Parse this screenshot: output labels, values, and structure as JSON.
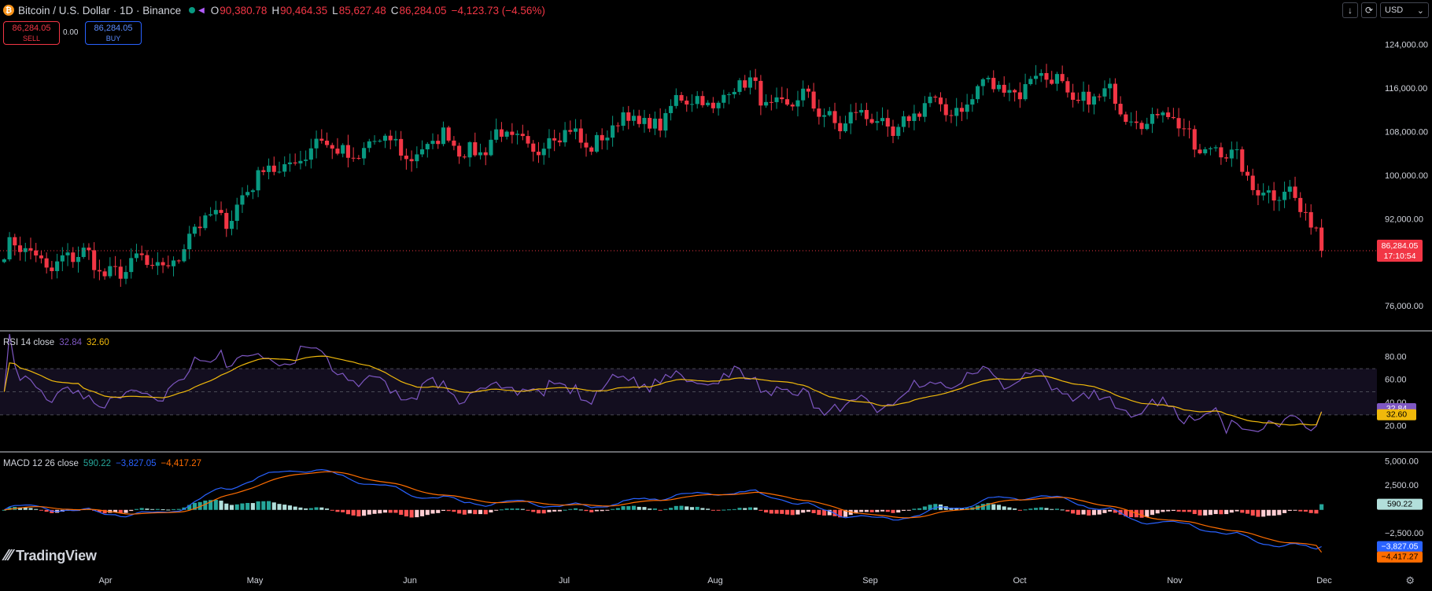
{
  "header": {
    "title": "Bitcoin / U.S. Dollar · 1D · Binance",
    "o_label": "O",
    "o_value": "90,380.78",
    "h_label": "H",
    "h_value": "90,464.35",
    "l_label": "L",
    "l_value": "85,627.48",
    "c_label": "C",
    "c_value": "86,284.05",
    "change": "−4,123.73 (−4.56%)"
  },
  "trade": {
    "sell_price": "86,284.05",
    "sell_label": "SELL",
    "buy_price": "86,284.05",
    "buy_label": "BUY",
    "spread": "0.00"
  },
  "toolbar": {
    "currency": "USD"
  },
  "price_pane": {
    "last_price": "86,284.05",
    "countdown": "17:10:54",
    "ticks": [
      "124,000.00",
      "116,000.00",
      "108,000.00",
      "100,000.00",
      "92,000.00",
      "76,000.00"
    ]
  },
  "rsi_pane": {
    "legend_name": "RSI 14 close",
    "rsi_value": "32.84",
    "ma_value": "32.60",
    "ticks": [
      "80.00",
      "60.00",
      "40.00",
      "20.00"
    ]
  },
  "macd_pane": {
    "legend_name": "MACD 12 26 close",
    "hist_value": "590.22",
    "macd_value": "−3,827.05",
    "signal_value": "−4,417.27",
    "ticks": [
      "5,000.00",
      "2,500.00",
      "−2,500.00"
    ]
  },
  "time_axis": [
    "Apr",
    "May",
    "Jun",
    "Jul",
    "Aug",
    "Sep",
    "Oct",
    "Nov",
    "Dec"
  ],
  "watermark": "TradingView",
  "colors": {
    "up": "#089981",
    "down": "#f23645",
    "rsi": "#7e57c2",
    "rsi_ma": "#f0b90b",
    "macd": "#2962ff",
    "signal": "#ff6d00",
    "hist_up_strong": "#26a69a",
    "hist_up_weak": "#b2dfdb",
    "hist_down_strong": "#ff5252",
    "hist_down_weak": "#ffcdd2"
  },
  "chart_data": {
    "type": "candlestick",
    "symbol": "BTCUSD",
    "interval": "1D",
    "price_range": [
      72000,
      128000
    ],
    "monthly_closes": [
      {
        "month": "Apr",
        "close": 82500
      },
      {
        "month": "May",
        "close": 104500
      },
      {
        "month": "Jun",
        "close": 105500
      },
      {
        "month": "Jul",
        "close": 107000
      },
      {
        "month": "Aug",
        "close": 116000
      },
      {
        "month": "Sep",
        "close": 109000
      },
      {
        "month": "Oct",
        "close": 118000
      },
      {
        "month": "Nov",
        "close": 109500
      },
      {
        "month": "Dec",
        "close": 91000
      }
    ],
    "last": {
      "open": 90380.78,
      "high": 90464.35,
      "low": 85627.48,
      "close": 86284.05,
      "change": -4123.73,
      "change_pct": -4.56
    },
    "rsi": {
      "period": 14,
      "value": 32.84,
      "ma": 32.6,
      "range": [
        0,
        100
      ],
      "levels": [
        70,
        50,
        30
      ]
    },
    "macd": {
      "fast": 12,
      "slow": 26,
      "histogram": 590.22,
      "macd": -3827.05,
      "signal": -4417.27,
      "range": [
        -6000,
        5800
      ]
    }
  }
}
